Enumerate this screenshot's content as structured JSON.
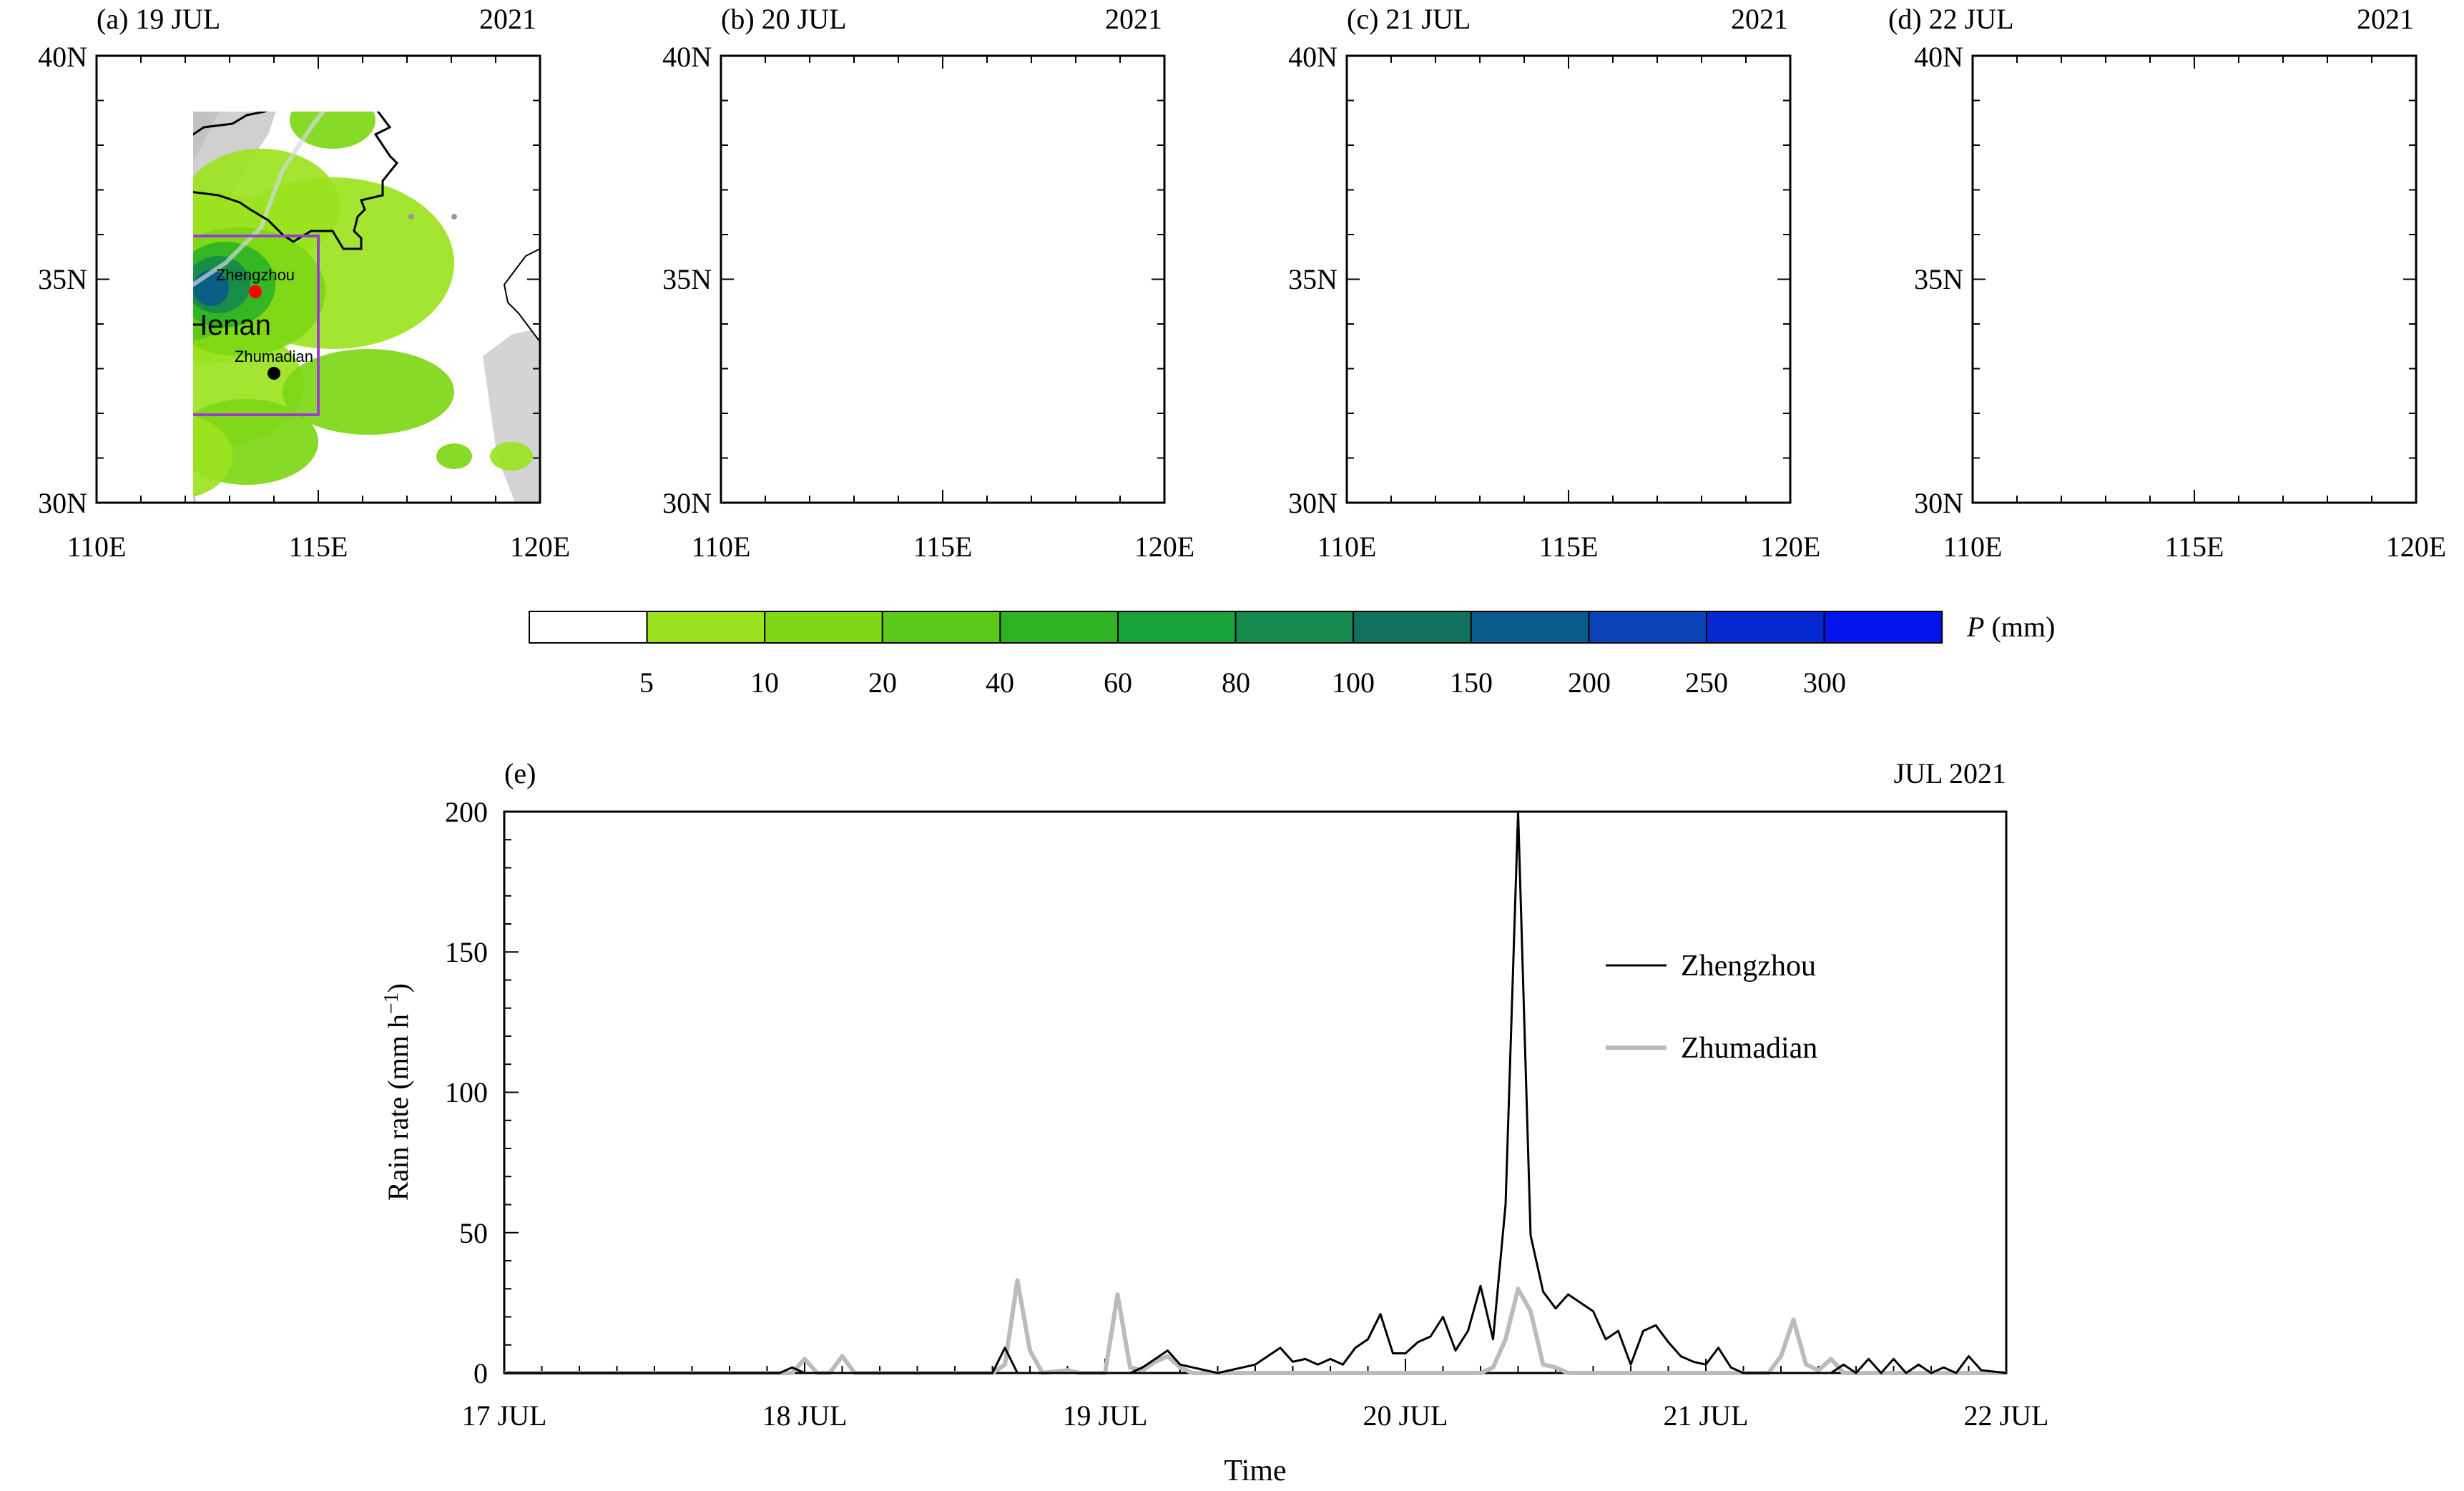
{
  "maps": {
    "lon_ticks": [
      "110E",
      "115E",
      "120E"
    ],
    "lat_ticks": [
      "40N",
      "35N",
      "30N"
    ],
    "province_label": "Henan",
    "city_1": "Zhengzhou",
    "city_2": "Zhumadian",
    "city_1_color": "#ff0000",
    "city_2_color": "#000000",
    "box_color": "#9a3fd0",
    "panels": [
      {
        "label": "(a) 19 JUL",
        "year": "2021"
      },
      {
        "label": "(b) 20 JUL",
        "year": "2021"
      },
      {
        "label": "(c) 21 JUL",
        "year": "2021"
      },
      {
        "label": "(d) 22 JUL",
        "year": "2021"
      }
    ]
  },
  "colorbar": {
    "title_var": "P",
    "title_unit": " (mm)",
    "ticks": [
      "5",
      "10",
      "20",
      "40",
      "60",
      "80",
      "100",
      "150",
      "200",
      "250",
      "300"
    ],
    "colors": [
      "#ffffff",
      "#9be31e",
      "#7ed717",
      "#5cc81a",
      "#2fb325",
      "#17a33a",
      "#158a4c",
      "#12705e",
      "#0a5a8a",
      "#0942b4",
      "#0628d2",
      "#0414ec"
    ]
  },
  "timeseries": {
    "panel_label": "(e)",
    "period": "JUL 2021",
    "xlabel": "Time",
    "ylabel": "Rain rate (mm h",
    "ylabel_sup": "−1",
    "ylabel_close": ")",
    "x_tick_labels": [
      "17 JUL",
      "18 JUL",
      "19 JUL",
      "20 JUL",
      "21 JUL",
      "22 JUL"
    ],
    "y_tick_labels": [
      "0",
      "50",
      "100",
      "150",
      "200"
    ]
  },
  "chart_data": {
    "type": "line",
    "title": "",
    "xlabel": "Time",
    "ylabel": "Rain rate (mm h−1)",
    "xlim": [
      "2021-07-17T00:00",
      "2021-07-22T00:00"
    ],
    "ylim": [
      0,
      200
    ],
    "legend_position": "right",
    "series": [
      {
        "name": "Zhengzhou",
        "color": "#000000",
        "points": [
          [
            "2021-07-17T00:00",
            0
          ],
          [
            "2021-07-17T22:00",
            0
          ],
          [
            "2021-07-17T23:00",
            2
          ],
          [
            "2021-07-18T00:00",
            0
          ],
          [
            "2021-07-18T15:00",
            0
          ],
          [
            "2021-07-18T16:00",
            9
          ],
          [
            "2021-07-18T17:00",
            0
          ],
          [
            "2021-07-19T00:00",
            0
          ],
          [
            "2021-07-19T02:00",
            0
          ],
          [
            "2021-07-19T03:00",
            2
          ],
          [
            "2021-07-19T05:00",
            8
          ],
          [
            "2021-07-19T06:00",
            3
          ],
          [
            "2021-07-19T07:00",
            2
          ],
          [
            "2021-07-19T08:00",
            1
          ],
          [
            "2021-07-19T09:00",
            0
          ],
          [
            "2021-07-19T10:00",
            1
          ],
          [
            "2021-07-19T11:00",
            2
          ],
          [
            "2021-07-19T12:00",
            3
          ],
          [
            "2021-07-19T13:00",
            6
          ],
          [
            "2021-07-19T14:00",
            9
          ],
          [
            "2021-07-19T15:00",
            4
          ],
          [
            "2021-07-19T16:00",
            5
          ],
          [
            "2021-07-19T17:00",
            3
          ],
          [
            "2021-07-19T18:00",
            5
          ],
          [
            "2021-07-19T19:00",
            3
          ],
          [
            "2021-07-19T20:00",
            9
          ],
          [
            "2021-07-19T21:00",
            12
          ],
          [
            "2021-07-19T22:00",
            21
          ],
          [
            "2021-07-19T23:00",
            7
          ],
          [
            "2021-07-20T00:00",
            7
          ],
          [
            "2021-07-20T01:00",
            11
          ],
          [
            "2021-07-20T02:00",
            13
          ],
          [
            "2021-07-20T03:00",
            20
          ],
          [
            "2021-07-20T04:00",
            8
          ],
          [
            "2021-07-20T05:00",
            15
          ],
          [
            "2021-07-20T06:00",
            31
          ],
          [
            "2021-07-20T07:00",
            12
          ],
          [
            "2021-07-20T08:00",
            60
          ],
          [
            "2021-07-20T09:00",
            201
          ],
          [
            "2021-07-20T10:00",
            49
          ],
          [
            "2021-07-20T11:00",
            29
          ],
          [
            "2021-07-20T12:00",
            23
          ],
          [
            "2021-07-20T13:00",
            28
          ],
          [
            "2021-07-20T14:00",
            25
          ],
          [
            "2021-07-20T15:00",
            22
          ],
          [
            "2021-07-20T16:00",
            12
          ],
          [
            "2021-07-20T17:00",
            15
          ],
          [
            "2021-07-20T18:00",
            3
          ],
          [
            "2021-07-20T19:00",
            15
          ],
          [
            "2021-07-20T20:00",
            17
          ],
          [
            "2021-07-20T21:00",
            11
          ],
          [
            "2021-07-20T22:00",
            6
          ],
          [
            "2021-07-20T23:00",
            4
          ],
          [
            "2021-07-21T00:00",
            3
          ],
          [
            "2021-07-21T01:00",
            9
          ],
          [
            "2021-07-21T02:00",
            2
          ],
          [
            "2021-07-21T03:00",
            0
          ],
          [
            "2021-07-21T10:00",
            0
          ],
          [
            "2021-07-21T11:00",
            3
          ],
          [
            "2021-07-21T12:00",
            0
          ],
          [
            "2021-07-21T13:00",
            5
          ],
          [
            "2021-07-21T14:00",
            0
          ],
          [
            "2021-07-21T15:00",
            5
          ],
          [
            "2021-07-21T16:00",
            0
          ],
          [
            "2021-07-21T17:00",
            3
          ],
          [
            "2021-07-21T18:00",
            0
          ],
          [
            "2021-07-21T19:00",
            2
          ],
          [
            "2021-07-21T20:00",
            0
          ],
          [
            "2021-07-21T21:00",
            6
          ],
          [
            "2021-07-21T22:00",
            1
          ],
          [
            "2021-07-22T00:00",
            0
          ]
        ]
      },
      {
        "name": "Zhumadian",
        "color": "#bbbbbb",
        "points": [
          [
            "2021-07-17T00:00",
            0
          ],
          [
            "2021-07-17T23:00",
            0
          ],
          [
            "2021-07-18T00:00",
            5
          ],
          [
            "2021-07-18T01:00",
            0
          ],
          [
            "2021-07-18T02:00",
            0
          ],
          [
            "2021-07-18T03:00",
            6
          ],
          [
            "2021-07-18T04:00",
            0
          ],
          [
            "2021-07-18T15:00",
            0
          ],
          [
            "2021-07-18T16:00",
            3
          ],
          [
            "2021-07-18T17:00",
            33
          ],
          [
            "2021-07-18T18:00",
            8
          ],
          [
            "2021-07-18T19:00",
            0
          ],
          [
            "2021-07-18T21:00",
            1
          ],
          [
            "2021-07-18T22:00",
            0
          ],
          [
            "2021-07-19T00:00",
            0
          ],
          [
            "2021-07-19T01:00",
            28
          ],
          [
            "2021-07-19T02:00",
            2
          ],
          [
            "2021-07-19T03:00",
            1
          ],
          [
            "2021-07-19T04:00",
            4
          ],
          [
            "2021-07-19T05:00",
            6
          ],
          [
            "2021-07-19T06:00",
            2
          ],
          [
            "2021-07-19T07:00",
            0
          ],
          [
            "2021-07-20T06:00",
            0
          ],
          [
            "2021-07-20T07:00",
            2
          ],
          [
            "2021-07-20T08:00",
            12
          ],
          [
            "2021-07-20T09:00",
            30
          ],
          [
            "2021-07-20T10:00",
            22
          ],
          [
            "2021-07-20T11:00",
            3
          ],
          [
            "2021-07-20T12:00",
            2
          ],
          [
            "2021-07-20T13:00",
            0
          ],
          [
            "2021-07-21T05:00",
            0
          ],
          [
            "2021-07-21T06:00",
            6
          ],
          [
            "2021-07-21T07:00",
            19
          ],
          [
            "2021-07-21T08:00",
            3
          ],
          [
            "2021-07-21T09:00",
            1
          ],
          [
            "2021-07-21T10:00",
            5
          ],
          [
            "2021-07-21T11:00",
            0
          ],
          [
            "2021-07-22T00:00",
            0
          ]
        ]
      }
    ]
  }
}
